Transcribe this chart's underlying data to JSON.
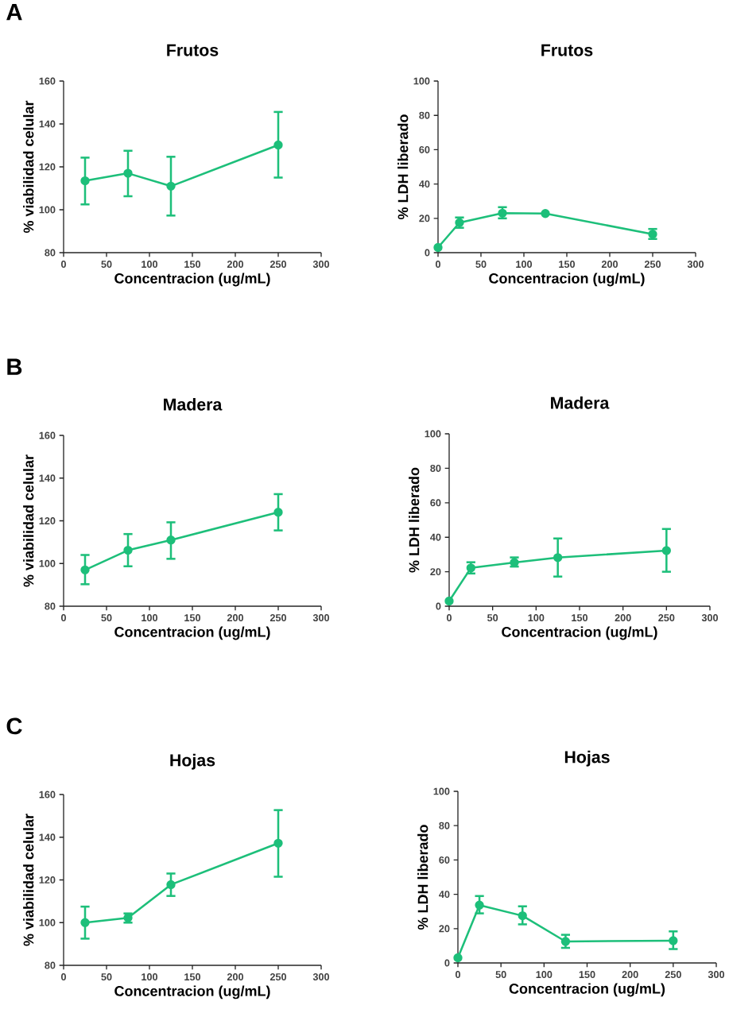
{
  "chart_data": [
    {
      "type": "line",
      "title": "Frutos",
      "xlabel": "Concentracion (ug/mL)",
      "ylabel": "% viabilidad celular",
      "annotations": [
        "A"
      ],
      "x": [
        25,
        75,
        125,
        250
      ],
      "values": [
        113.5,
        117,
        111,
        130.2
      ],
      "errors": [
        [
          102.5,
          124.3
        ],
        [
          106.3,
          127.5
        ],
        [
          97.3,
          124.7
        ],
        [
          115,
          145.6
        ]
      ],
      "color": "#1dbf7a",
      "marker": "circle",
      "xlim": [
        0,
        300
      ],
      "ylim": [
        80,
        160
      ],
      "xticks": [
        0,
        50,
        100,
        150,
        200,
        250,
        300
      ],
      "yticks": [
        80,
        100,
        120,
        140,
        160
      ],
      "grid": false
    },
    {
      "type": "line",
      "title": "Frutos",
      "xlabel": "Concentracion (ug/mL)",
      "ylabel": "% LDH liberado",
      "x": [
        0,
        25,
        75,
        125,
        250
      ],
      "values": [
        3,
        17.5,
        23,
        22.8,
        10.8
      ],
      "errors": [
        null,
        [
          14.5,
          20.5
        ],
        [
          20,
          26.5
        ],
        null,
        [
          8,
          13.8
        ]
      ],
      "color": "#1dbf7a",
      "marker": "circle",
      "xlim": [
        0,
        300
      ],
      "ylim": [
        0,
        100
      ],
      "xticks": [
        0,
        50,
        100,
        150,
        200,
        250,
        300
      ],
      "yticks": [
        0,
        20,
        40,
        60,
        80,
        100
      ],
      "grid": false
    },
    {
      "type": "line",
      "title": "Madera",
      "xlabel": "Concentracion (ug/mL)",
      "ylabel": "% viabilidad celular",
      "annotations": [
        "B"
      ],
      "x": [
        25,
        75,
        125,
        250
      ],
      "values": [
        97,
        106.2,
        111,
        124
      ],
      "errors": [
        [
          90.3,
          104
        ],
        [
          98.7,
          113.8
        ],
        [
          102.2,
          119.3
        ],
        [
          115.5,
          132.5
        ]
      ],
      "color": "#1dbf7a",
      "marker": "circle",
      "xlim": [
        0,
        300
      ],
      "ylim": [
        80,
        160
      ],
      "xticks": [
        0,
        50,
        100,
        150,
        200,
        250,
        300
      ],
      "yticks": [
        80,
        100,
        120,
        140,
        160
      ],
      "grid": false
    },
    {
      "type": "line",
      "title": "Madera",
      "xlabel": "Concentracion (ug/mL)",
      "ylabel": "% LDH liberado",
      "x": [
        0,
        25,
        75,
        125,
        250
      ],
      "values": [
        3,
        22.2,
        25.4,
        28.2,
        32.3
      ],
      "errors": [
        null,
        [
          19,
          25.5
        ],
        [
          23,
          28.3
        ],
        [
          17.2,
          39.3
        ],
        [
          20,
          44.8
        ]
      ],
      "color": "#1dbf7a",
      "marker": "circle",
      "xlim": [
        0,
        300
      ],
      "ylim": [
        0,
        100
      ],
      "xticks": [
        0,
        50,
        100,
        150,
        200,
        250,
        300
      ],
      "yticks": [
        0,
        20,
        40,
        60,
        80,
        100
      ],
      "grid": false
    },
    {
      "type": "line",
      "title": "Hojas",
      "xlabel": "Concentracion (ug/mL)",
      "ylabel": "% viabilidad celular",
      "annotations": [
        "C"
      ],
      "x": [
        25,
        75,
        125,
        250
      ],
      "values": [
        100,
        102.2,
        117.8,
        137.2
      ],
      "errors": [
        [
          92.5,
          107.5
        ],
        [
          100,
          104.3
        ],
        [
          112.5,
          123
        ],
        [
          121.5,
          152.7
        ]
      ],
      "color": "#1dbf7a",
      "marker": "circle",
      "xlim": [
        0,
        300
      ],
      "ylim": [
        80,
        160
      ],
      "xticks": [
        0,
        50,
        100,
        150,
        200,
        250,
        300
      ],
      "yticks": [
        80,
        100,
        120,
        140,
        160
      ],
      "grid": false
    },
    {
      "type": "line",
      "title": "Hojas",
      "xlabel": "Concentracion (ug/mL)",
      "ylabel": "% LDH liberado",
      "x": [
        0,
        25,
        75,
        125,
        250
      ],
      "values": [
        3,
        33.7,
        27.5,
        12.5,
        13
      ],
      "errors": [
        null,
        [
          28.9,
          39
        ],
        [
          22.5,
          33
        ],
        [
          8.8,
          16.4
        ],
        [
          8.1,
          18.4
        ]
      ],
      "color": "#1dbf7a",
      "marker": "circle",
      "xlim": [
        0,
        300
      ],
      "ylim": [
        0,
        100
      ],
      "xticks": [
        0,
        50,
        100,
        150,
        200,
        250,
        300
      ],
      "yticks": [
        0,
        20,
        40,
        60,
        80,
        100
      ],
      "grid": false
    }
  ]
}
